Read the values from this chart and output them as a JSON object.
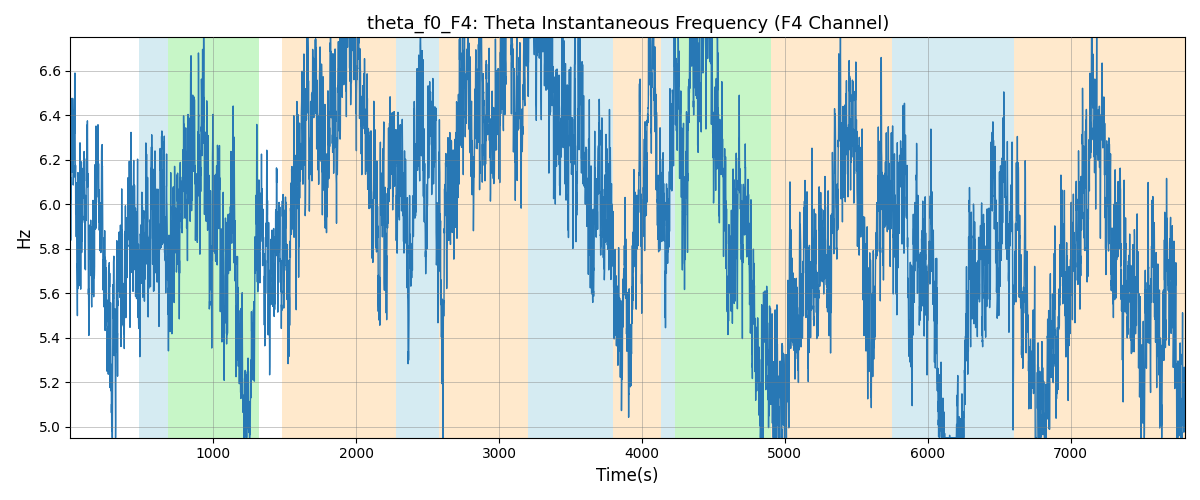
{
  "title": "theta_f0_F4: Theta Instantaneous Frequency (F4 Channel)",
  "xlabel": "Time(s)",
  "ylabel": "Hz",
  "xlim": [
    0,
    7800
  ],
  "ylim": [
    4.95,
    6.75
  ],
  "yticks": [
    5.0,
    5.2,
    5.4,
    5.6,
    5.8,
    6.0,
    6.2,
    6.4,
    6.6
  ],
  "xticks": [
    1000,
    2000,
    3000,
    4000,
    5000,
    6000,
    7000
  ],
  "line_color": "#2878b5",
  "line_width": 1.0,
  "figsize": [
    12.0,
    5.0
  ],
  "dpi": 100,
  "background_color": "#ffffff",
  "regions": [
    {
      "xmin": 480,
      "xmax": 680,
      "color": "#add8e6",
      "alpha": 0.5
    },
    {
      "xmin": 680,
      "xmax": 1320,
      "color": "#90ee90",
      "alpha": 0.5
    },
    {
      "xmin": 1480,
      "xmax": 2280,
      "color": "#ffd59a",
      "alpha": 0.5
    },
    {
      "xmin": 2280,
      "xmax": 2580,
      "color": "#add8e6",
      "alpha": 0.5
    },
    {
      "xmin": 2580,
      "xmax": 3200,
      "color": "#ffd59a",
      "alpha": 0.5
    },
    {
      "xmin": 3200,
      "xmax": 3800,
      "color": "#add8e6",
      "alpha": 0.5
    },
    {
      "xmin": 3800,
      "xmax": 4130,
      "color": "#ffd59a",
      "alpha": 0.5
    },
    {
      "xmin": 4130,
      "xmax": 4230,
      "color": "#add8e6",
      "alpha": 0.5
    },
    {
      "xmin": 4230,
      "xmax": 4900,
      "color": "#90ee90",
      "alpha": 0.5
    },
    {
      "xmin": 4900,
      "xmax": 5750,
      "color": "#ffd59a",
      "alpha": 0.5
    },
    {
      "xmin": 5750,
      "xmax": 5850,
      "color": "#add8e6",
      "alpha": 0.5
    },
    {
      "xmin": 5850,
      "xmax": 6600,
      "color": "#add8e6",
      "alpha": 0.5
    },
    {
      "xmin": 6600,
      "xmax": 7800,
      "color": "#ffd59a",
      "alpha": 0.5
    }
  ],
  "seed": 12345,
  "num_points": 7800,
  "mean_freq": 6.0,
  "slow_alpha": 0.998,
  "slow_sigma": 0.04,
  "fast_sigma": 0.13,
  "fast_alpha": 0.7
}
